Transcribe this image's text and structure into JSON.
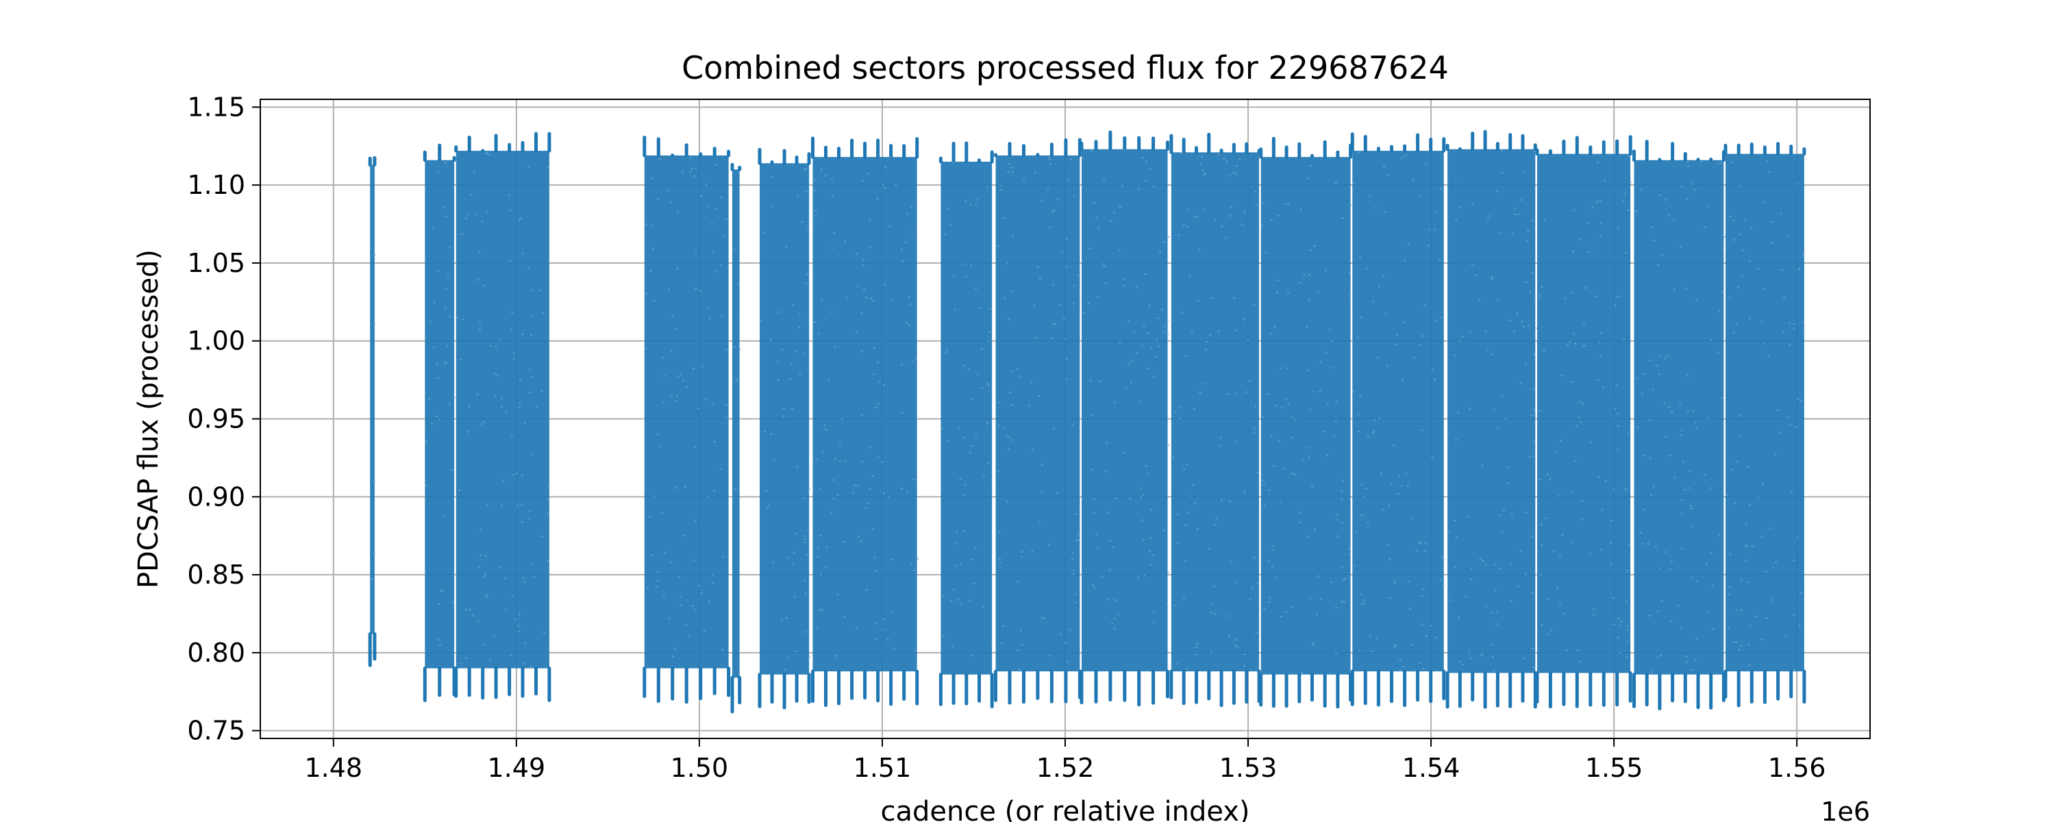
{
  "chart_data": {
    "type": "scatter",
    "title": "Combined sectors processed flux for 229687624",
    "xlabel": "cadence (or relative index)",
    "ylabel": "PDCSAP flux (processed)",
    "x_offset_label": "1e6",
    "xlim": [
      1476000,
      1564000
    ],
    "ylim": [
      0.745,
      1.155
    ],
    "grid": true,
    "legend": "none",
    "marker_color": "#1f77b4",
    "x_ticks": [
      1480000,
      1490000,
      1500000,
      1510000,
      1520000,
      1530000,
      1540000,
      1550000,
      1560000
    ],
    "x_tick_labels": [
      "1.48",
      "1.49",
      "1.50",
      "1.51",
      "1.52",
      "1.53",
      "1.54",
      "1.55",
      "1.56"
    ],
    "y_ticks": [
      0.75,
      0.8,
      0.85,
      0.9,
      0.95,
      1.0,
      1.05,
      1.1,
      1.15
    ],
    "y_tick_labels": [
      "0.75",
      "0.80",
      "0.85",
      "0.90",
      "0.95",
      "1.00",
      "1.05",
      "1.10",
      "1.15"
    ],
    "segments": [
      {
        "x_start": 1482000,
        "x_end": 1482250,
        "y_min": 0.79,
        "y_max": 1.125
      },
      {
        "x_start": 1485000,
        "x_end": 1486600,
        "y_min": 0.768,
        "y_max": 1.128
      },
      {
        "x_start": 1486700,
        "x_end": 1491800,
        "y_min": 0.768,
        "y_max": 1.134
      },
      {
        "x_start": 1497000,
        "x_end": 1501600,
        "y_min": 0.768,
        "y_max": 1.131
      },
      {
        "x_start": 1501800,
        "x_end": 1502200,
        "y_min": 0.762,
        "y_max": 1.122
      },
      {
        "x_start": 1503300,
        "x_end": 1506000,
        "y_min": 0.764,
        "y_max": 1.126
      },
      {
        "x_start": 1506200,
        "x_end": 1511900,
        "y_min": 0.766,
        "y_max": 1.13
      },
      {
        "x_start": 1513200,
        "x_end": 1516000,
        "y_min": 0.764,
        "y_max": 1.127
      },
      {
        "x_start": 1516200,
        "x_end": 1520800,
        "y_min": 0.766,
        "y_max": 1.131
      },
      {
        "x_start": 1520900,
        "x_end": 1525600,
        "y_min": 0.766,
        "y_max": 1.135
      },
      {
        "x_start": 1525800,
        "x_end": 1530600,
        "y_min": 0.766,
        "y_max": 1.133
      },
      {
        "x_start": 1530700,
        "x_end": 1535600,
        "y_min": 0.764,
        "y_max": 1.13
      },
      {
        "x_start": 1535700,
        "x_end": 1540700,
        "y_min": 0.766,
        "y_max": 1.134
      },
      {
        "x_start": 1540900,
        "x_end": 1545700,
        "y_min": 0.765,
        "y_max": 1.135
      },
      {
        "x_start": 1545800,
        "x_end": 1550900,
        "y_min": 0.765,
        "y_max": 1.132
      },
      {
        "x_start": 1551100,
        "x_end": 1556000,
        "y_min": 0.764,
        "y_max": 1.128
      },
      {
        "x_start": 1556100,
        "x_end": 1560400,
        "y_min": 0.766,
        "y_max": 1.132
      }
    ]
  }
}
